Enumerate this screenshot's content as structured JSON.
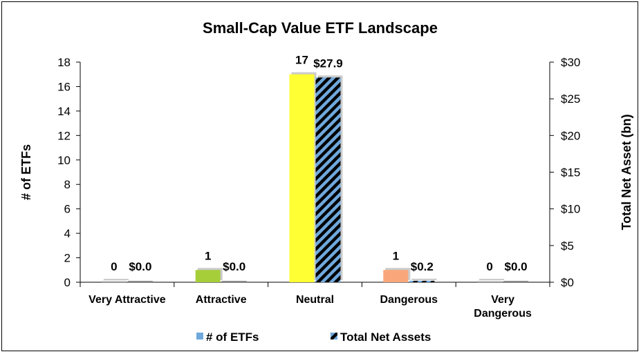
{
  "chart_data": {
    "type": "bar",
    "title": "Small-Cap Value ETF Landscape",
    "categories": [
      "Very Attractive",
      "Attractive",
      "Neutral",
      "Dangerous",
      "Very Dangerous"
    ],
    "category_lines": [
      [
        "Very Attractive"
      ],
      [
        "Attractive"
      ],
      [
        "Neutral"
      ],
      [
        "Dangerous"
      ],
      [
        "Very",
        "Dangerous"
      ]
    ],
    "series": [
      {
        "name": "# of ETFs",
        "axis": "left",
        "values": [
          0,
          1,
          17,
          1,
          0
        ],
        "labels": [
          "0",
          "1",
          "17",
          "1",
          "0"
        ],
        "colors": [
          "#c0c0c0",
          "#a6ce39",
          "#ffff33",
          "#f9a77a",
          "#c0c0c0"
        ],
        "legend_color": "#6fa8dc"
      },
      {
        "name": "Total Net Assets",
        "axis": "right",
        "values": [
          0.0,
          0.0,
          27.9,
          0.2,
          0.0
        ],
        "labels": [
          "$0.0",
          "$0.0",
          "$27.9",
          "$0.2",
          "$0.0"
        ],
        "fill": "striped",
        "stripe_colors": [
          "#6fa8dc",
          "#000000"
        ]
      }
    ],
    "ylabel": "# of ETFs",
    "ylim": [
      0,
      18
    ],
    "yticks": [
      "0",
      "2",
      "4",
      "6",
      "8",
      "10",
      "12",
      "14",
      "16",
      "18"
    ],
    "y2label": "Total Net Asset (bn)",
    "y2lim": [
      0,
      30
    ],
    "y2ticks": [
      "$0",
      "$5",
      "$10",
      "$15",
      "$20",
      "$25",
      "$30"
    ],
    "grid": false,
    "legend_position": "bottom"
  }
}
